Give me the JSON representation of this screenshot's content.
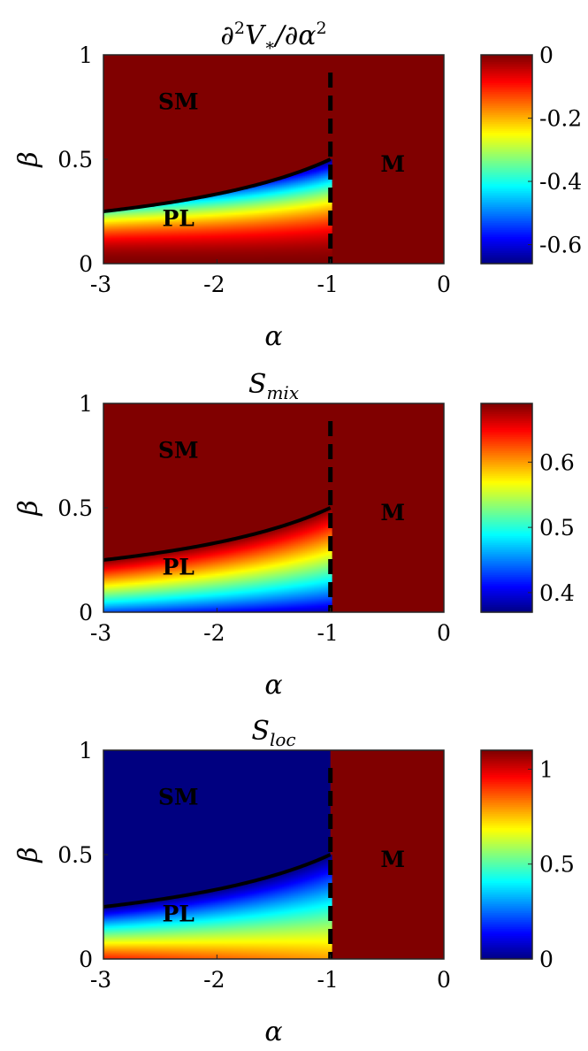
{
  "colormap": "jet",
  "colors": {
    "boundary": "#000000",
    "dashed_line": "#000000",
    "cb_max": "#800000",
    "cb_min": "#00008f"
  },
  "chart_data": [
    {
      "type": "heatmap",
      "title_parts": [
        "∂",
        "2",
        "V",
        "∗",
        "/∂α",
        "2"
      ],
      "xlabel": "α",
      "ylabel": "β",
      "xlim": [
        -3,
        0
      ],
      "ylim": [
        0,
        1
      ],
      "xticks": [
        "-3",
        "-2",
        "-1",
        "0"
      ],
      "yticks": [
        "0",
        "0.5",
        "1"
      ],
      "regions": [
        "SM",
        "PL",
        "M"
      ],
      "phase_boundary": "β = 1/(1-α)",
      "dashed_line_alpha": -1,
      "pl_field": "second-derivative",
      "constant_region_value": 0,
      "colorbar": {
        "min": -0.66,
        "max": 0,
        "ticks": [
          "0",
          "-0.2",
          "-0.4",
          "-0.6"
        ],
        "tick_values": [
          0,
          -0.2,
          -0.4,
          -0.6
        ]
      },
      "grid": false
    },
    {
      "type": "heatmap",
      "title_parts": [
        "S",
        "mix"
      ],
      "xlabel": "α",
      "ylabel": "β",
      "xlim": [
        -3,
        0
      ],
      "ylim": [
        0,
        1
      ],
      "xticks": [
        "-3",
        "-2",
        "-1",
        "0"
      ],
      "yticks": [
        "0",
        "0.5",
        "1"
      ],
      "regions": [
        "SM",
        "PL",
        "M"
      ],
      "phase_boundary": "β = 1/(1-α)",
      "dashed_line_alpha": -1,
      "pl_field": "mixing-entropy",
      "constant_region_value": 0.69,
      "colorbar": {
        "min": 0.37,
        "max": 0.69,
        "ticks": [
          "0.6",
          "0.5",
          "0.4"
        ],
        "tick_values": [
          0.6,
          0.5,
          0.4
        ]
      },
      "grid": false
    },
    {
      "type": "heatmap",
      "title_parts": [
        "S",
        "loc"
      ],
      "xlabel": "α",
      "ylabel": "β",
      "xlim": [
        -3,
        0
      ],
      "ylim": [
        0,
        1
      ],
      "xticks": [
        "-3",
        "-2",
        "-1",
        "0"
      ],
      "yticks": [
        "0",
        "0.5",
        "1"
      ],
      "regions": [
        "SM",
        "PL",
        "M"
      ],
      "phase_boundary": "β = 1/(1-α)",
      "dashed_line_alpha": -1,
      "pl_field": "localization-entropy",
      "constant_region_value": 1.1,
      "sm_region_value": 0,
      "colorbar": {
        "min": 0,
        "max": 1.1,
        "ticks": [
          "1",
          "0.5",
          "0"
        ],
        "tick_values": [
          1,
          0.5,
          0
        ]
      },
      "grid": false
    }
  ]
}
